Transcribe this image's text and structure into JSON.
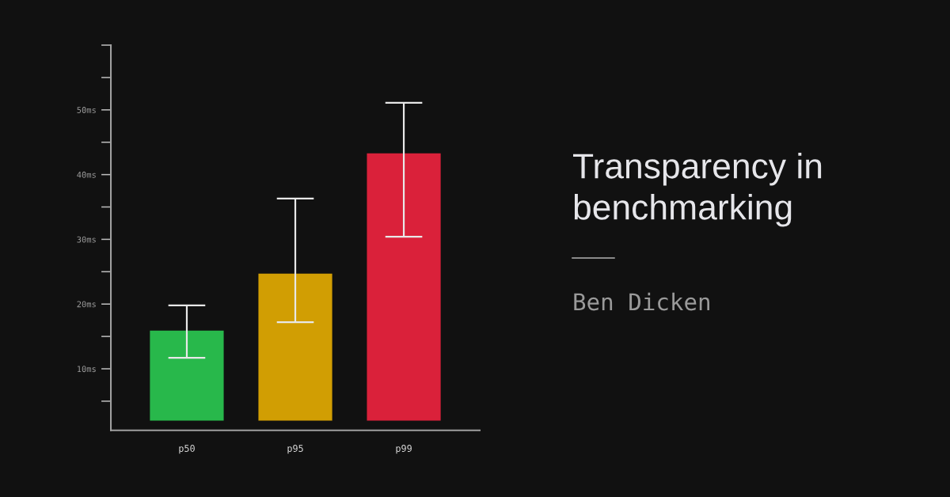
{
  "chart_data": {
    "type": "bar",
    "title": "Transparency in benchmarking",
    "subtitle": "Ben Dicken",
    "categories": [
      "p50",
      "p95",
      "p99"
    ],
    "base": [
      2,
      2,
      2
    ],
    "values": [
      13.9,
      22.7,
      41.3
    ],
    "colors": [
      "#28b84b",
      "#d19e03",
      "#da213a"
    ],
    "errors": [
      [
        11.7,
        19.8
      ],
      [
        17.2,
        36.3
      ],
      [
        30.4,
        51.1
      ]
    ],
    "ylim": [
      0.5,
      60
    ],
    "yticks": [
      {
        "value": 5,
        "label": null
      },
      {
        "value": 10,
        "label": "10ms"
      },
      {
        "value": 15,
        "label": null
      },
      {
        "value": 20,
        "label": "20ms"
      },
      {
        "value": 25,
        "label": null
      },
      {
        "value": 30,
        "label": "30ms"
      },
      {
        "value": 35,
        "label": null
      },
      {
        "value": 40,
        "label": "40ms"
      },
      {
        "value": 45,
        "label": null
      },
      {
        "value": 50,
        "label": "50ms"
      },
      {
        "value": 55,
        "label": null
      },
      {
        "value": 60,
        "label": null
      }
    ]
  }
}
